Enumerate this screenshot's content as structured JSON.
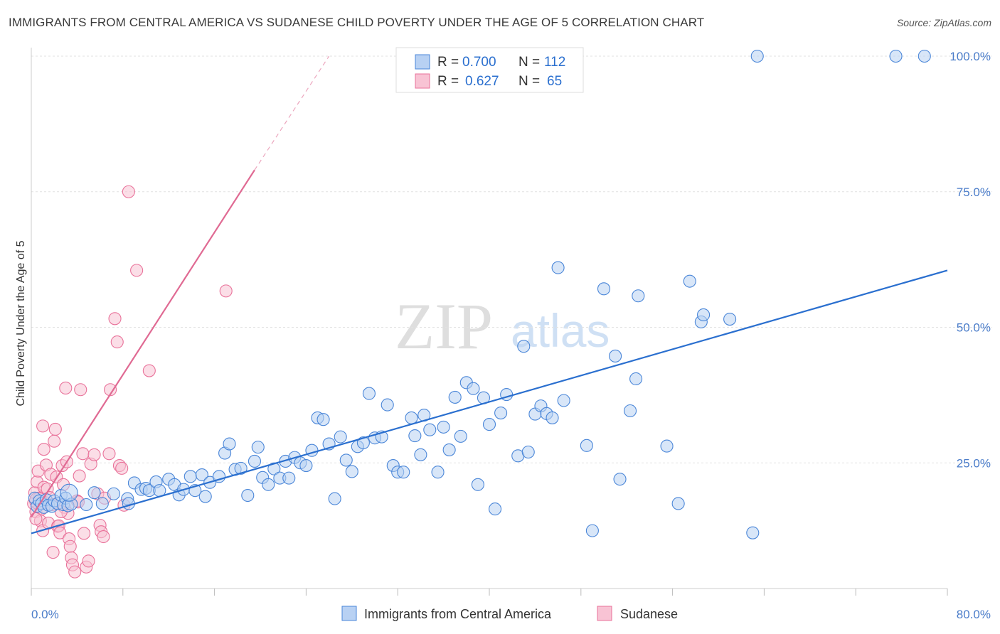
{
  "title": "IMMIGRANTS FROM CENTRAL AMERICA VS SUDANESE CHILD POVERTY UNDER THE AGE OF 5 CORRELATION CHART",
  "source": "Source: ZipAtlas.com",
  "watermark": {
    "zip": "ZIP",
    "atlas": "atlas"
  },
  "colors": {
    "blue": "#4a86d8",
    "blue_fill": "#b8d1f3",
    "blue_line": "#2a6fcf",
    "pink": "#e9729a",
    "pink_fill": "#f8c3d4",
    "pink_line": "#e06a93",
    "grid": "#e2e2e2",
    "tick_label": "#4a7cc9"
  },
  "legend_top": {
    "rows": [
      {
        "series": "Immigrants from Central America",
        "r_label": "R = ",
        "r_value": "0.700",
        "n_label": "N = ",
        "n_value": "112"
      },
      {
        "series": "Sudanese",
        "r_label": "R = ",
        "r_value": "0.627",
        "n_label": "N = ",
        "n_value": "65"
      }
    ]
  },
  "chart_data": {
    "type": "scatter",
    "title": "IMMIGRANTS FROM CENTRAL AMERICA VS SUDANESE CHILD POVERTY UNDER THE AGE OF 5 CORRELATION CHART",
    "xlabel": "",
    "ylabel": "Child Poverty Under the Age of 5",
    "xlim": [
      0,
      80
    ],
    "ylim": [
      0,
      105
    ],
    "x_tick_labels": [
      "0.0%",
      "80.0%"
    ],
    "y_ticks": [
      25,
      50,
      75,
      100
    ],
    "y_tick_labels": [
      "25.0%",
      "50.0%",
      "75.0%",
      "100.0%"
    ],
    "grid": true,
    "legend": "bottom-center",
    "series": [
      {
        "name": "Immigrants from Central America",
        "color": "#4a86d8",
        "trend": {
          "x": [
            0.0,
            80.0
          ],
          "y": [
            12.0,
            60.5
          ]
        },
        "points": [
          [
            0.3,
            18.5
          ],
          [
            0.5,
            17.0
          ],
          [
            0.7,
            18.0
          ],
          [
            0.9,
            17.5
          ],
          [
            1.1,
            16.8
          ],
          [
            1.3,
            18.2
          ],
          [
            1.5,
            17.2
          ],
          [
            1.8,
            17.0
          ],
          [
            2.0,
            18.0
          ],
          [
            2.3,
            17.5
          ],
          [
            2.6,
            19.0
          ],
          [
            2.8,
            17.3
          ],
          [
            3.0,
            18.5
          ],
          [
            3.2,
            17.1
          ],
          [
            3.5,
            17.4
          ],
          [
            4.8,
            17.3
          ],
          [
            5.5,
            19.5
          ],
          [
            6.2,
            17.5
          ],
          [
            7.2,
            19.3
          ],
          [
            8.4,
            18.4
          ],
          [
            8.5,
            17.5
          ],
          [
            9.0,
            21.3
          ],
          [
            9.6,
            20.1
          ],
          [
            10.0,
            20.3
          ],
          [
            10.3,
            19.9
          ],
          [
            10.9,
            21.5
          ],
          [
            11.2,
            19.9
          ],
          [
            12.0,
            22.0
          ],
          [
            12.5,
            21.0
          ],
          [
            12.9,
            19.1
          ],
          [
            13.3,
            20.1
          ],
          [
            13.9,
            22.5
          ],
          [
            14.3,
            19.9
          ],
          [
            14.9,
            22.8
          ],
          [
            15.2,
            18.8
          ],
          [
            15.6,
            21.4
          ],
          [
            16.4,
            22.5
          ],
          [
            16.9,
            26.8
          ],
          [
            17.3,
            28.5
          ],
          [
            17.8,
            23.8
          ],
          [
            18.3,
            24.0
          ],
          [
            18.9,
            19.0
          ],
          [
            19.5,
            25.3
          ],
          [
            19.8,
            27.9
          ],
          [
            20.2,
            22.3
          ],
          [
            20.7,
            21.0
          ],
          [
            21.2,
            23.9
          ],
          [
            21.7,
            22.2
          ],
          [
            22.2,
            25.3
          ],
          [
            22.5,
            22.2
          ],
          [
            23.0,
            26.0
          ],
          [
            23.5,
            25.0
          ],
          [
            24.0,
            24.5
          ],
          [
            24.5,
            27.3
          ],
          [
            25.0,
            33.3
          ],
          [
            25.5,
            33.0
          ],
          [
            26.0,
            28.5
          ],
          [
            26.5,
            18.4
          ],
          [
            27.0,
            29.8
          ],
          [
            27.5,
            25.5
          ],
          [
            28.0,
            23.4
          ],
          [
            28.5,
            28.0
          ],
          [
            29.0,
            28.7
          ],
          [
            29.5,
            37.8
          ],
          [
            30.0,
            29.6
          ],
          [
            30.6,
            29.8
          ],
          [
            31.1,
            35.7
          ],
          [
            31.6,
            24.5
          ],
          [
            32.0,
            23.3
          ],
          [
            32.5,
            23.3
          ],
          [
            33.2,
            33.3
          ],
          [
            33.5,
            30.0
          ],
          [
            34.0,
            26.5
          ],
          [
            34.3,
            33.8
          ],
          [
            34.8,
            31.1
          ],
          [
            35.5,
            23.3
          ],
          [
            36.0,
            31.6
          ],
          [
            36.5,
            27.4
          ],
          [
            37.0,
            37.1
          ],
          [
            37.5,
            29.9
          ],
          [
            38.0,
            39.8
          ],
          [
            38.6,
            38.7
          ],
          [
            39.0,
            21.0
          ],
          [
            39.5,
            37.0
          ],
          [
            40.0,
            32.1
          ],
          [
            40.5,
            16.5
          ],
          [
            41.0,
            34.2
          ],
          [
            41.5,
            37.6
          ],
          [
            42.5,
            26.3
          ],
          [
            43.0,
            46.5
          ],
          [
            43.4,
            27.0
          ],
          [
            44.0,
            34.0
          ],
          [
            44.5,
            35.5
          ],
          [
            45.0,
            34.1
          ],
          [
            45.5,
            33.3
          ],
          [
            46.0,
            61.0
          ],
          [
            46.5,
            36.5
          ],
          [
            48.5,
            28.2
          ],
          [
            49.0,
            12.5
          ],
          [
            50.0,
            57.1
          ],
          [
            51.0,
            44.7
          ],
          [
            51.4,
            22.0
          ],
          [
            52.3,
            34.6
          ],
          [
            52.8,
            40.5
          ],
          [
            53.0,
            55.8
          ],
          [
            55.5,
            28.1
          ],
          [
            56.5,
            17.5
          ],
          [
            57.5,
            58.5
          ],
          [
            58.5,
            51.0
          ],
          [
            58.7,
            52.3
          ],
          [
            61.0,
            51.5
          ],
          [
            63.0,
            12.1
          ],
          [
            63.4,
            100.0
          ],
          [
            75.5,
            100.0
          ],
          [
            78.0,
            100.0
          ]
        ]
      },
      {
        "name": "Sudanese",
        "color": "#e9729a",
        "trend": {
          "x": [
            0.0,
            19.5
          ],
          "y": [
            15.0,
            79.0
          ],
          "x_dashed_end": 26.0,
          "y_dashed_end": 100.0
        },
        "points": [
          [
            0.2,
            17.5
          ],
          [
            0.3,
            19.5
          ],
          [
            0.4,
            16.0
          ],
          [
            0.5,
            21.5
          ],
          [
            0.6,
            23.5
          ],
          [
            0.7,
            18.5
          ],
          [
            0.8,
            14.3
          ],
          [
            0.9,
            16.5
          ],
          [
            1.0,
            12.5
          ],
          [
            1.1,
            27.5
          ],
          [
            1.1,
            20.5
          ],
          [
            1.2,
            17.7
          ],
          [
            1.3,
            24.6
          ],
          [
            1.4,
            20.2
          ],
          [
            1.5,
            13.9
          ],
          [
            1.6,
            18.6
          ],
          [
            1.7,
            22.9
          ],
          [
            1.8,
            17.3
          ],
          [
            2.0,
            29.0
          ],
          [
            2.1,
            31.2
          ],
          [
            2.2,
            22.4
          ],
          [
            2.3,
            13.3
          ],
          [
            2.4,
            13.4
          ],
          [
            2.5,
            12.1
          ],
          [
            2.7,
            24.5
          ],
          [
            2.8,
            21.0
          ],
          [
            2.9,
            16.8
          ],
          [
            3.0,
            38.8
          ],
          [
            3.1,
            25.2
          ],
          [
            3.2,
            15.7
          ],
          [
            3.3,
            11.0
          ],
          [
            3.4,
            9.6
          ],
          [
            3.5,
            7.5
          ],
          [
            3.6,
            6.2
          ],
          [
            3.8,
            4.9
          ],
          [
            4.0,
            18.0
          ],
          [
            4.1,
            17.8
          ],
          [
            4.2,
            22.6
          ],
          [
            4.3,
            38.5
          ],
          [
            4.5,
            26.7
          ],
          [
            4.6,
            12.0
          ],
          [
            4.8,
            5.8
          ],
          [
            5.0,
            6.9
          ],
          [
            5.2,
            24.8
          ],
          [
            5.5,
            26.5
          ],
          [
            5.8,
            19.3
          ],
          [
            6.0,
            13.5
          ],
          [
            6.1,
            12.3
          ],
          [
            6.3,
            11.4
          ],
          [
            6.4,
            18.5
          ],
          [
            6.8,
            26.7
          ],
          [
            6.9,
            38.5
          ],
          [
            7.3,
            51.6
          ],
          [
            7.5,
            47.3
          ],
          [
            7.7,
            24.5
          ],
          [
            7.9,
            24.0
          ],
          [
            8.1,
            17.2
          ],
          [
            8.5,
            75.0
          ],
          [
            9.2,
            60.5
          ],
          [
            10.3,
            42.0
          ],
          [
            17.0,
            56.7
          ],
          [
            1.9,
            8.5
          ],
          [
            2.6,
            16.0
          ],
          [
            0.4,
            14.7
          ],
          [
            1.0,
            31.8
          ]
        ]
      }
    ]
  },
  "legend_bottom": [
    {
      "label": "Immigrants from Central America"
    },
    {
      "label": "Sudanese"
    }
  ]
}
